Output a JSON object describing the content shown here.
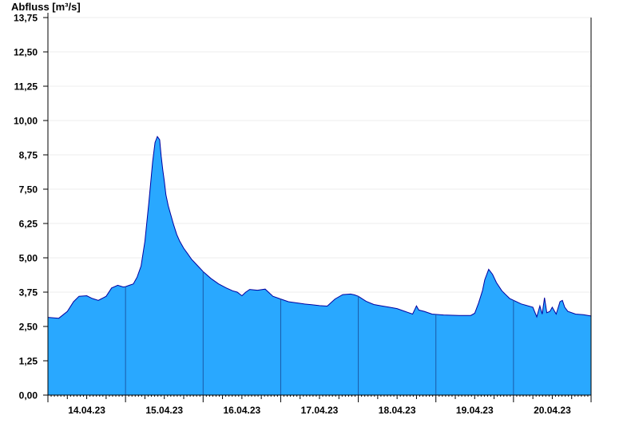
{
  "chart_data": {
    "type": "area",
    "title": "",
    "xlabel": "",
    "ylabel": "Abfluss [m³/s]",
    "ylim": [
      0,
      13.75
    ],
    "y_ticks": [
      "0,00",
      "1,25",
      "2,50",
      "3,75",
      "5,00",
      "6,25",
      "7,50",
      "8,75",
      "10,00",
      "11,25",
      "12,50",
      "13,75"
    ],
    "x_day_ticks": [
      "14.04.23",
      "15.04.23",
      "16.04.23",
      "17.04.23",
      "18.04.23",
      "19.04.23",
      "20.04.23"
    ],
    "xlim_days": [
      -0.5,
      6.5
    ],
    "grid": true,
    "fill_color": "#29a8ff",
    "line_color": "#0000a0",
    "series": [
      {
        "x": [
          -0.5,
          -0.36,
          -0.25,
          -0.17,
          -0.1,
          0.0,
          0.07,
          0.15,
          0.25,
          0.32,
          0.4,
          0.47,
          0.5,
          0.55,
          0.6,
          0.65,
          0.7,
          0.75,
          0.8,
          0.85,
          0.88,
          0.91,
          0.94,
          0.96,
          0.98,
          1.0,
          1.02,
          1.05,
          1.08,
          1.12,
          1.16,
          1.2,
          1.25,
          1.3,
          1.35,
          1.4,
          1.45,
          1.5,
          1.6,
          1.7,
          1.8,
          1.88,
          1.94,
          2.0,
          2.05,
          2.1,
          2.2,
          2.3,
          2.4,
          2.5,
          2.6,
          2.7,
          2.8,
          2.9,
          3.0,
          3.1,
          3.2,
          3.3,
          3.4,
          3.45,
          3.5,
          3.6,
          3.7,
          3.8,
          3.9,
          4.0,
          4.1,
          4.2,
          4.25,
          4.28,
          4.35,
          4.45,
          4.6,
          4.8,
          4.95,
          5.0,
          5.05,
          5.1,
          5.13,
          5.18,
          5.23,
          5.28,
          5.35,
          5.45,
          5.6,
          5.75,
          5.8,
          5.84,
          5.87,
          5.9,
          5.93,
          5.97,
          6.0,
          6.05,
          6.1,
          6.13,
          6.16,
          6.2,
          6.3,
          6.4,
          6.5
        ],
        "values": [
          2.83,
          2.8,
          3.05,
          3.4,
          3.6,
          3.62,
          3.52,
          3.45,
          3.6,
          3.9,
          4.0,
          3.94,
          3.95,
          4.0,
          4.05,
          4.3,
          4.7,
          5.6,
          7.0,
          8.5,
          9.2,
          9.42,
          9.3,
          8.7,
          8.2,
          7.8,
          7.3,
          6.9,
          6.6,
          6.2,
          5.85,
          5.6,
          5.35,
          5.15,
          4.95,
          4.8,
          4.65,
          4.5,
          4.25,
          4.05,
          3.9,
          3.8,
          3.75,
          3.62,
          3.75,
          3.85,
          3.82,
          3.86,
          3.6,
          3.5,
          3.4,
          3.36,
          3.32,
          3.29,
          3.26,
          3.24,
          3.5,
          3.66,
          3.68,
          3.65,
          3.6,
          3.42,
          3.3,
          3.25,
          3.2,
          3.15,
          3.05,
          2.95,
          3.25,
          3.1,
          3.05,
          2.95,
          2.92,
          2.9,
          2.9,
          2.98,
          3.35,
          3.8,
          4.2,
          4.58,
          4.4,
          4.1,
          3.8,
          3.52,
          3.32,
          3.2,
          2.85,
          3.25,
          2.95,
          3.55,
          3.0,
          3.05,
          3.2,
          2.95,
          3.4,
          3.45,
          3.2,
          3.05,
          2.95,
          2.93,
          2.88
        ]
      }
    ]
  }
}
